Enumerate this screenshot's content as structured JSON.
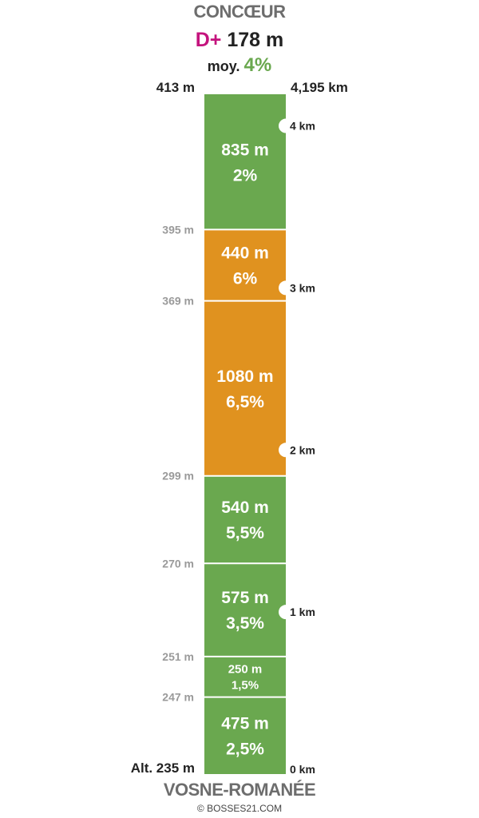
{
  "summit": {
    "name": "CONCŒUR",
    "altitude": "413 m",
    "distance": "4,195 km"
  },
  "start": {
    "name": "VOSNE-ROMANÉE",
    "altitude": "Alt. 235 m"
  },
  "gain": {
    "prefix": "D+",
    "value": "178 m"
  },
  "average": {
    "label": "moy.",
    "value": "4%"
  },
  "copyright": "© BOSSES21.COM",
  "colors": {
    "green": "#6aa84f",
    "orange": "#e0921f",
    "accent": "#c4137d"
  },
  "chart_data": {
    "type": "bar",
    "total_km": 4.195,
    "segments": [
      {
        "length_m": 475,
        "length_label": "475 m",
        "grade": "2,5%",
        "color": "green",
        "start_alt_label": ""
      },
      {
        "length_m": 250,
        "length_label": "250 m",
        "grade": "1,5%",
        "color": "green",
        "start_alt_label": "247 m"
      },
      {
        "length_m": 575,
        "length_label": "575 m",
        "grade": "3,5%",
        "color": "green",
        "start_alt_label": "251 m"
      },
      {
        "length_m": 540,
        "length_label": "540 m",
        "grade": "5,5%",
        "color": "green",
        "start_alt_label": "270 m"
      },
      {
        "length_m": 1080,
        "length_label": "1080 m",
        "grade": "6,5%",
        "color": "orange",
        "start_alt_label": "299 m"
      },
      {
        "length_m": 440,
        "length_label": "440 m",
        "grade": "6%",
        "color": "orange",
        "start_alt_label": "369 m"
      },
      {
        "length_m": 835,
        "length_label": "835 m",
        "grade": "2%",
        "color": "green",
        "start_alt_label": "395 m"
      }
    ],
    "km_markers": [
      {
        "km": 0,
        "label": "0 km",
        "notch": false
      },
      {
        "km": 1,
        "label": "1 km",
        "notch": true
      },
      {
        "km": 2,
        "label": "2 km",
        "notch": true
      },
      {
        "km": 3,
        "label": "3 km",
        "notch": true
      },
      {
        "km": 4,
        "label": "4 km",
        "notch": true
      }
    ]
  }
}
